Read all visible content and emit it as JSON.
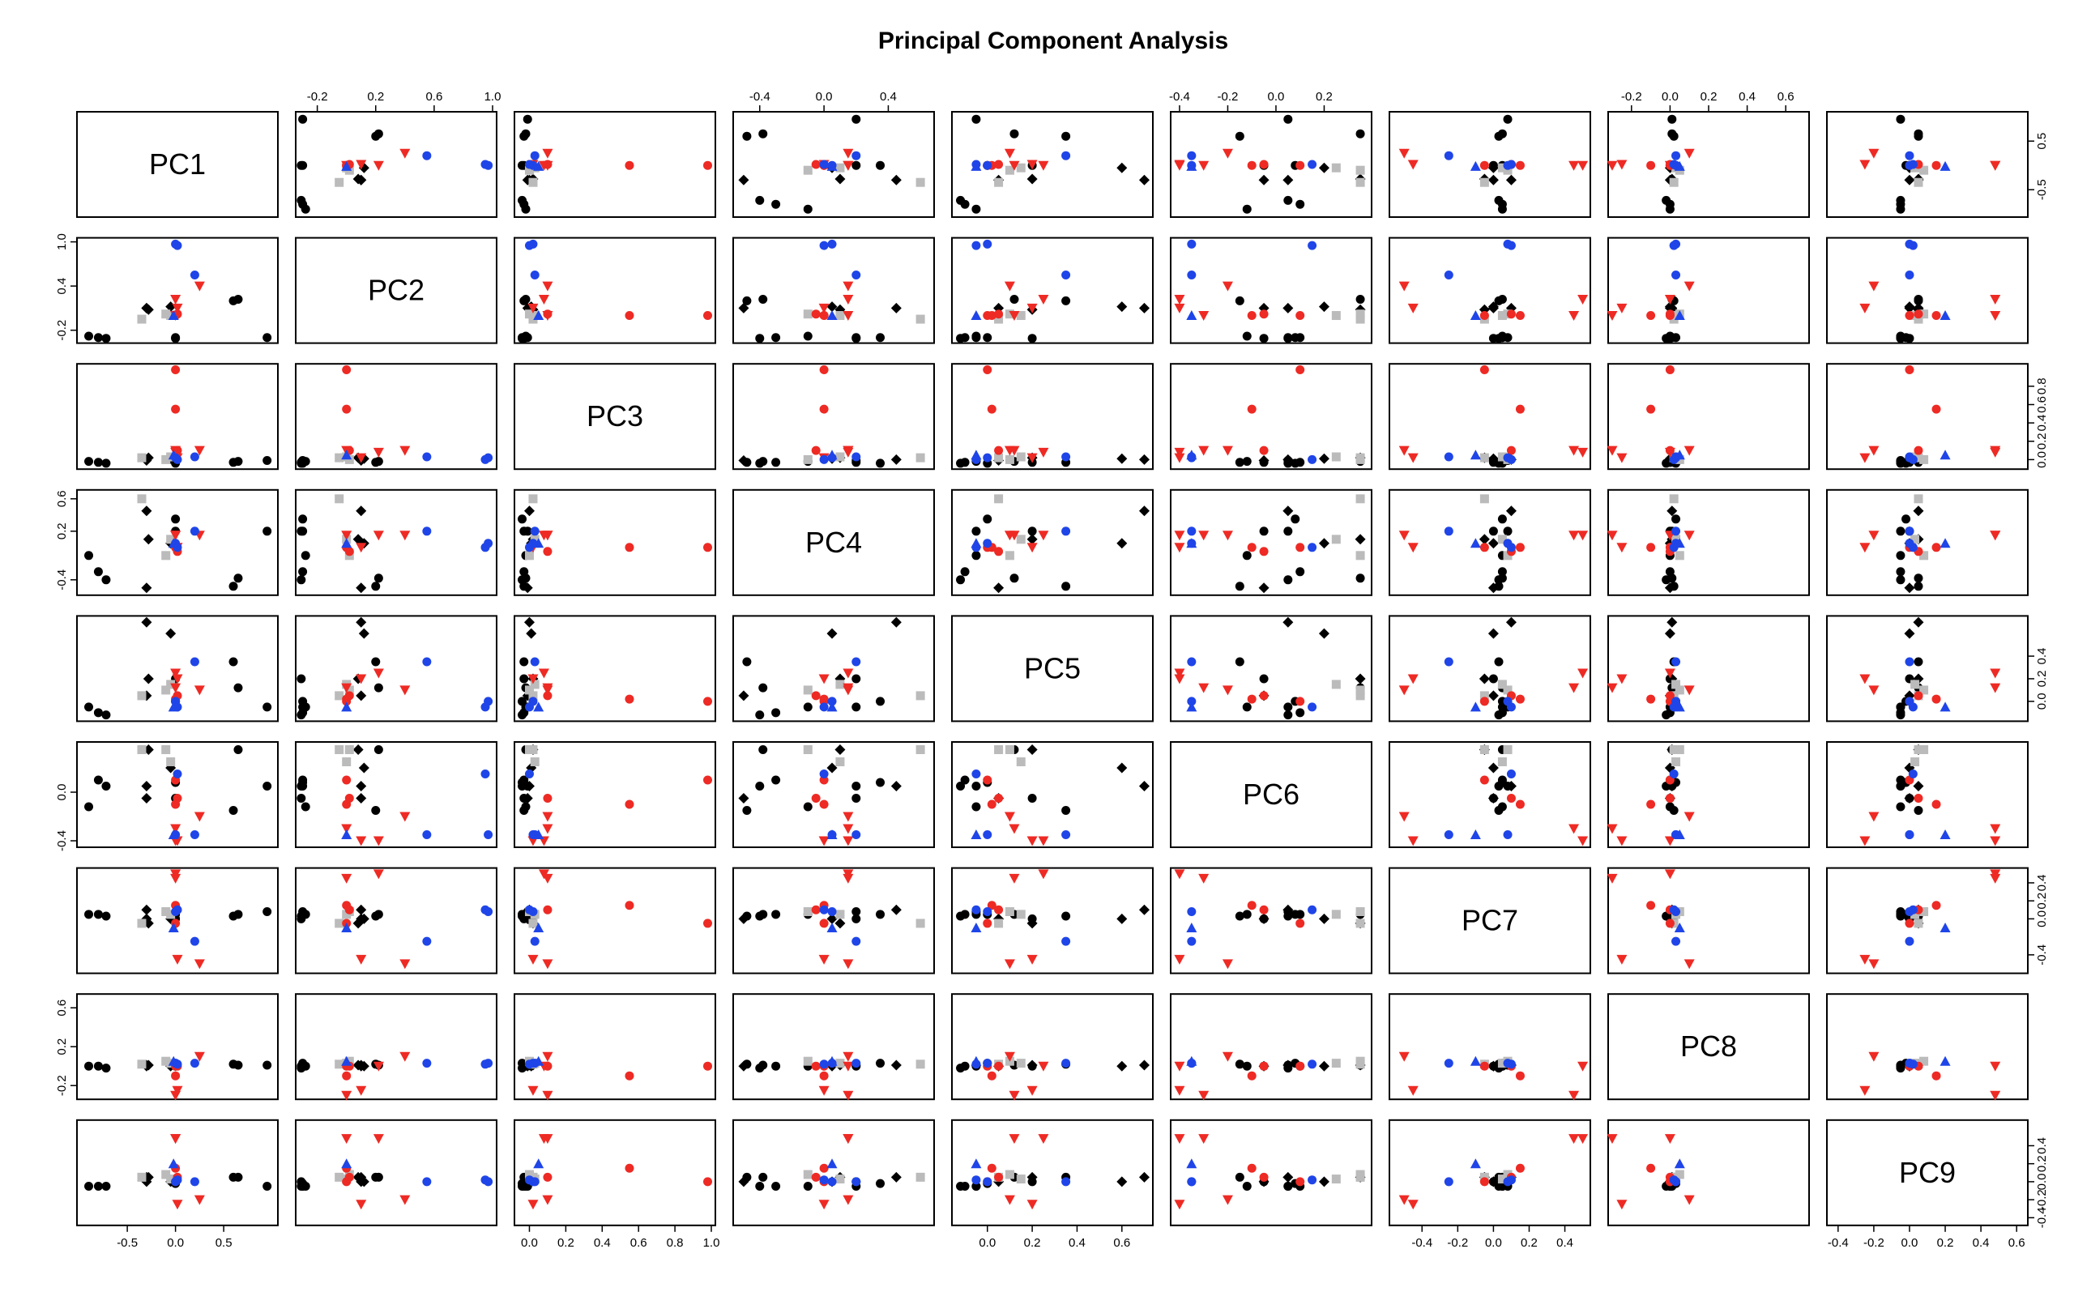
{
  "chart_data": {
    "type": "scatter",
    "subtype": "pairs",
    "title": "Principal Component Analysis",
    "variables": [
      "PC1",
      "PC2",
      "PC3",
      "PC4",
      "PC5",
      "PC6",
      "PC7",
      "PC8",
      "PC9"
    ],
    "ranges": [
      [
        -0.98,
        1.02
      ],
      [
        -0.32,
        1.0
      ],
      [
        -0.06,
        1.0
      ],
      [
        -0.54,
        0.66
      ],
      [
        -0.14,
        0.72
      ],
      [
        -0.42,
        0.38
      ],
      [
        -0.56,
        0.52
      ],
      [
        -0.3,
        0.7
      ],
      [
        -0.44,
        0.64
      ]
    ],
    "axis_ticks": [
      [
        -0.5,
        0.0,
        0.5
      ],
      [
        -0.2,
        0.2,
        0.6,
        1.0
      ],
      [
        0.0,
        0.2,
        0.4,
        0.6,
        0.8,
        1.0
      ],
      [
        -0.4,
        0.0,
        0.4
      ],
      [
        0.0,
        0.2,
        0.4,
        0.6
      ],
      [
        -0.4,
        0.0,
        0.2
      ],
      [
        -0.4,
        0.0,
        0.2,
        0.4
      ],
      [
        -0.2,
        0.0,
        0.2,
        0.4,
        0.6
      ],
      [
        -0.4,
        -0.2,
        0.0,
        0.2,
        0.4,
        0.6
      ]
    ],
    "side_ticks": {
      "top": [
        null,
        [
          -0.2,
          0.2,
          0.6,
          1.0
        ],
        null,
        [
          -0.4,
          0.0,
          0.4
        ],
        null,
        [
          -0.4,
          -0.2,
          0.0,
          0.2
        ],
        null,
        [
          -0.2,
          0.0,
          0.2,
          0.4,
          0.6
        ],
        null
      ],
      "bottom": [
        [
          -0.5,
          0.0,
          0.5
        ],
        null,
        [
          0.0,
          0.2,
          0.4,
          0.6,
          0.8,
          1.0
        ],
        null,
        [
          0.0,
          0.2,
          0.4,
          0.6
        ],
        null,
        [
          -0.4,
          -0.2,
          0.0,
          0.2,
          0.4
        ],
        null,
        [
          -0.4,
          -0.2,
          0.0,
          0.2,
          0.4,
          0.6
        ]
      ],
      "left": [
        null,
        [
          -0.2,
          0.4,
          1.0
        ],
        null,
        [
          -0.4,
          0.2,
          0.6
        ],
        null,
        [
          -0.4,
          0.0
        ],
        null,
        [
          -0.2,
          0.2,
          0.6
        ],
        null
      ],
      "right": [
        [
          -0.5,
          0.5
        ],
        null,
        [
          0.0,
          0.2,
          0.4,
          0.6,
          0.8
        ],
        null,
        [
          0.0,
          0.2,
          0.4
        ],
        null,
        [
          -0.4,
          0.0,
          0.2,
          0.4
        ],
        null,
        [
          -0.4,
          -0.2,
          0.0,
          0.2,
          0.4
        ]
      ]
    },
    "series": [
      {
        "name": "",
        "color": "#000000",
        "shape": "circle",
        "points": [
          [
            -0.9,
            -0.28,
            -0.02,
            -0.1,
            -0.05,
            -0.12,
            0.05,
            0.0,
            -0.05
          ],
          [
            -0.8,
            -0.3,
            -0.03,
            -0.3,
            -0.1,
            0.1,
            0.05,
            0.0,
            -0.05
          ],
          [
            -0.72,
            -0.31,
            -0.04,
            -0.4,
            -0.12,
            0.05,
            0.03,
            -0.02,
            -0.05
          ],
          [
            0.6,
            0.2,
            -0.03,
            -0.48,
            0.35,
            -0.15,
            0.03,
            0.02,
            0.05
          ],
          [
            0.65,
            0.22,
            -0.02,
            -0.38,
            0.12,
            0.35,
            0.05,
            0.01,
            0.05
          ],
          [
            0.95,
            -0.3,
            -0.01,
            0.2,
            -0.05,
            0.05,
            0.08,
            0.01,
            -0.05
          ],
          [
            0.0,
            -0.3,
            -0.04,
            0.35,
            0.0,
            0.08,
            0.05,
            0.03,
            -0.02
          ],
          [
            0.0,
            -0.31,
            -0.03,
            0.2,
            0.2,
            -0.05,
            0.0,
            0.0,
            0.0
          ]
        ]
      },
      {
        "name": "",
        "color": "#000000",
        "shape": "diamond",
        "points": [
          [
            -0.3,
            0.1,
            0.0,
            0.45,
            0.7,
            0.05,
            0.1,
            0.01,
            0.05
          ],
          [
            -0.3,
            0.1,
            -0.01,
            -0.5,
            0.05,
            -0.05,
            0.0,
            0.0,
            0.0
          ],
          [
            -0.28,
            0.08,
            0.02,
            0.1,
            0.2,
            0.35,
            -0.05,
            0.01,
            0.05
          ],
          [
            -0.05,
            0.12,
            0.01,
            0.05,
            0.6,
            0.2,
            0.0,
            0.0,
            0.0
          ]
        ]
      },
      {
        "name": "",
        "color": "#bbbbbb",
        "shape": "square",
        "points": [
          [
            -0.35,
            -0.05,
            0.02,
            0.6,
            0.05,
            0.35,
            -0.05,
            0.02,
            0.05
          ],
          [
            -0.1,
            0.02,
            0.0,
            -0.1,
            0.1,
            0.35,
            0.08,
            0.05,
            0.08
          ],
          [
            -0.05,
            0.0,
            0.03,
            0.1,
            0.15,
            0.25,
            0.05,
            0.03,
            0.03
          ]
        ]
      },
      {
        "name": "",
        "color": "#ee2a24",
        "shape": "circle",
        "points": [
          [
            0.0,
            0.0,
            0.98,
            0.0,
            0.0,
            0.1,
            -0.05,
            0.0,
            0.0
          ],
          [
            0.0,
            0.0,
            0.55,
            0.0,
            0.02,
            -0.1,
            0.15,
            -0.1,
            0.15
          ],
          [
            0.02,
            0.02,
            0.1,
            -0.05,
            0.05,
            -0.05,
            0.1,
            0.0,
            0.05
          ]
        ]
      },
      {
        "name": "",
        "color": "#ee2a24",
        "shape": "triangle-down",
        "points": [
          [
            0.0,
            0.22,
            0.08,
            0.15,
            0.25,
            -0.4,
            0.5,
            0.0,
            0.48
          ],
          [
            0.0,
            0.0,
            0.1,
            0.15,
            0.12,
            -0.3,
            0.45,
            -0.3,
            0.48
          ],
          [
            0.25,
            0.4,
            0.1,
            0.15,
            0.1,
            -0.2,
            -0.5,
            0.1,
            -0.2
          ],
          [
            0.02,
            0.1,
            0.02,
            0.0,
            0.2,
            -0.4,
            -0.45,
            -0.25,
            -0.25
          ]
        ]
      },
      {
        "name": "",
        "color": "#1f45e8",
        "shape": "circle",
        "points": [
          [
            0.0,
            0.97,
            0.02,
            0.05,
            0.0,
            -0.35,
            0.08,
            0.03,
            0.0
          ],
          [
            0.2,
            0.55,
            0.03,
            0.2,
            0.35,
            -0.35,
            -0.25,
            0.03,
            0.0
          ],
          [
            0.02,
            0.95,
            0.0,
            0.0,
            -0.05,
            0.15,
            0.1,
            0.02,
            0.02
          ]
        ]
      },
      {
        "name": "",
        "color": "#1f45e8",
        "shape": "triangle-up",
        "points": [
          [
            -0.02,
            0.0,
            0.05,
            0.05,
            -0.05,
            -0.35,
            -0.1,
            0.05,
            0.2
          ]
        ]
      }
    ]
  }
}
